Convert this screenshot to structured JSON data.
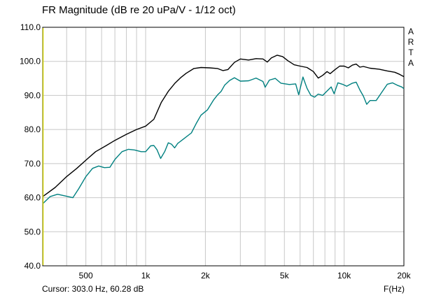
{
  "header": {
    "title": "FR Magnitude (dB re 20 uPa/V - 1/12 oct)"
  },
  "logo": {
    "letters": [
      "A",
      "R",
      "T",
      "A"
    ]
  },
  "footer": {
    "cursor": "Cursor: 303.0 Hz, 60.28 dB",
    "x_unit": "F(Hz)"
  },
  "colors": {
    "series1": "#000000",
    "series2": "#008080",
    "cursor_line": "#cccc00",
    "grid": "#c8c8c8"
  },
  "chart_data": {
    "type": "line",
    "title": "FR Magnitude (dB re 20 uPa/V - 1/12 oct)",
    "xlabel": "F(Hz)",
    "ylabel": "",
    "x_scale": "log",
    "xlim": [
      303,
      20000
    ],
    "ylim": [
      40,
      110
    ],
    "grid": true,
    "xticks": [
      {
        "value": 500,
        "label": "500"
      },
      {
        "value": 1000,
        "label": "1k"
      },
      {
        "value": 2000,
        "label": "2k"
      },
      {
        "value": 5000,
        "label": "5k"
      },
      {
        "value": 10000,
        "label": "10k"
      },
      {
        "value": 20000,
        "label": "20k"
      }
    ],
    "yticks": [
      {
        "value": 40,
        "label": "40.0"
      },
      {
        "value": 50,
        "label": "50.0"
      },
      {
        "value": 60,
        "label": "60.0"
      },
      {
        "value": 70,
        "label": "70.0"
      },
      {
        "value": 80,
        "label": "80.0"
      },
      {
        "value": 90,
        "label": "90.0"
      },
      {
        "value": 100,
        "label": "100.0"
      },
      {
        "value": 110,
        "label": "110.0"
      }
    ],
    "cursor": {
      "x": 303.0,
      "y": 60.28
    },
    "series": [
      {
        "color": "#000000",
        "points": [
          [
            303,
            60.3
          ],
          [
            350,
            63.0
          ],
          [
            400,
            66.2
          ],
          [
            450,
            68.6
          ],
          [
            500,
            71.0
          ],
          [
            560,
            73.5
          ],
          [
            630,
            75.2
          ],
          [
            700,
            76.8
          ],
          [
            800,
            78.6
          ],
          [
            900,
            80.0
          ],
          [
            1000,
            81.0
          ],
          [
            1100,
            83.0
          ],
          [
            1200,
            88.0
          ],
          [
            1300,
            91.2
          ],
          [
            1400,
            93.5
          ],
          [
            1500,
            95.2
          ],
          [
            1600,
            96.5
          ],
          [
            1750,
            97.9
          ],
          [
            1900,
            98.2
          ],
          [
            2100,
            98.1
          ],
          [
            2300,
            97.9
          ],
          [
            2450,
            97.3
          ],
          [
            2600,
            97.6
          ],
          [
            2800,
            99.7
          ],
          [
            3000,
            100.7
          ],
          [
            3300,
            100.4
          ],
          [
            3600,
            100.8
          ],
          [
            3900,
            100.7
          ],
          [
            4100,
            99.8
          ],
          [
            4300,
            101.0
          ],
          [
            4600,
            101.8
          ],
          [
            4900,
            101.4
          ],
          [
            5200,
            100.2
          ],
          [
            5600,
            99.0
          ],
          [
            6000,
            98.6
          ],
          [
            6500,
            98.2
          ],
          [
            7000,
            97.0
          ],
          [
            7400,
            95.1
          ],
          [
            7800,
            95.9
          ],
          [
            8200,
            97.0
          ],
          [
            8500,
            96.4
          ],
          [
            9000,
            97.6
          ],
          [
            9500,
            98.6
          ],
          [
            10000,
            98.6
          ],
          [
            10500,
            98.1
          ],
          [
            11000,
            98.9
          ],
          [
            11500,
            99.2
          ],
          [
            12000,
            98.3
          ],
          [
            12500,
            98.5
          ],
          [
            13500,
            98.0
          ],
          [
            15000,
            97.7
          ],
          [
            16500,
            97.2
          ],
          [
            18000,
            96.8
          ],
          [
            19000,
            96.2
          ],
          [
            20000,
            95.5
          ]
        ]
      },
      {
        "color": "#008080",
        "points": [
          [
            303,
            58.2
          ],
          [
            330,
            60.3
          ],
          [
            360,
            61.0
          ],
          [
            400,
            60.4
          ],
          [
            430,
            60.0
          ],
          [
            460,
            62.6
          ],
          [
            500,
            66.2
          ],
          [
            540,
            68.6
          ],
          [
            580,
            69.3
          ],
          [
            620,
            68.8
          ],
          [
            660,
            68.9
          ],
          [
            700,
            71.2
          ],
          [
            760,
            73.5
          ],
          [
            820,
            74.2
          ],
          [
            880,
            74.0
          ],
          [
            950,
            73.5
          ],
          [
            1000,
            73.5
          ],
          [
            1060,
            75.2
          ],
          [
            1100,
            75.3
          ],
          [
            1140,
            74.1
          ],
          [
            1190,
            71.5
          ],
          [
            1250,
            73.6
          ],
          [
            1300,
            76.1
          ],
          [
            1350,
            75.7
          ],
          [
            1400,
            74.6
          ],
          [
            1450,
            75.9
          ],
          [
            1550,
            77.2
          ],
          [
            1700,
            79.0
          ],
          [
            1800,
            81.8
          ],
          [
            1900,
            84.2
          ],
          [
            2050,
            85.8
          ],
          [
            2200,
            88.7
          ],
          [
            2300,
            90.1
          ],
          [
            2400,
            91.2
          ],
          [
            2500,
            93.0
          ],
          [
            2650,
            94.4
          ],
          [
            2800,
            95.2
          ],
          [
            3000,
            94.2
          ],
          [
            3300,
            94.3
          ],
          [
            3600,
            95.1
          ],
          [
            3900,
            94.1
          ],
          [
            4000,
            92.4
          ],
          [
            4200,
            94.5
          ],
          [
            4500,
            95.0
          ],
          [
            4800,
            93.6
          ],
          [
            5300,
            93.2
          ],
          [
            5700,
            93.4
          ],
          [
            5900,
            90.2
          ],
          [
            6200,
            95.4
          ],
          [
            6500,
            92.1
          ],
          [
            6800,
            90.0
          ],
          [
            7100,
            89.5
          ],
          [
            7400,
            90.4
          ],
          [
            7800,
            90.0
          ],
          [
            8200,
            91.3
          ],
          [
            8600,
            92.5
          ],
          [
            8900,
            90.5
          ],
          [
            9300,
            93.7
          ],
          [
            9800,
            93.3
          ],
          [
            10300,
            92.7
          ],
          [
            11000,
            93.6
          ],
          [
            11500,
            93.9
          ],
          [
            12000,
            91.6
          ],
          [
            12500,
            89.8
          ],
          [
            13000,
            87.4
          ],
          [
            13500,
            88.5
          ],
          [
            14500,
            88.5
          ],
          [
            15500,
            91.0
          ],
          [
            16500,
            93.3
          ],
          [
            17500,
            93.7
          ],
          [
            18500,
            93.0
          ],
          [
            19500,
            92.5
          ],
          [
            20000,
            92.0
          ]
        ]
      }
    ]
  }
}
